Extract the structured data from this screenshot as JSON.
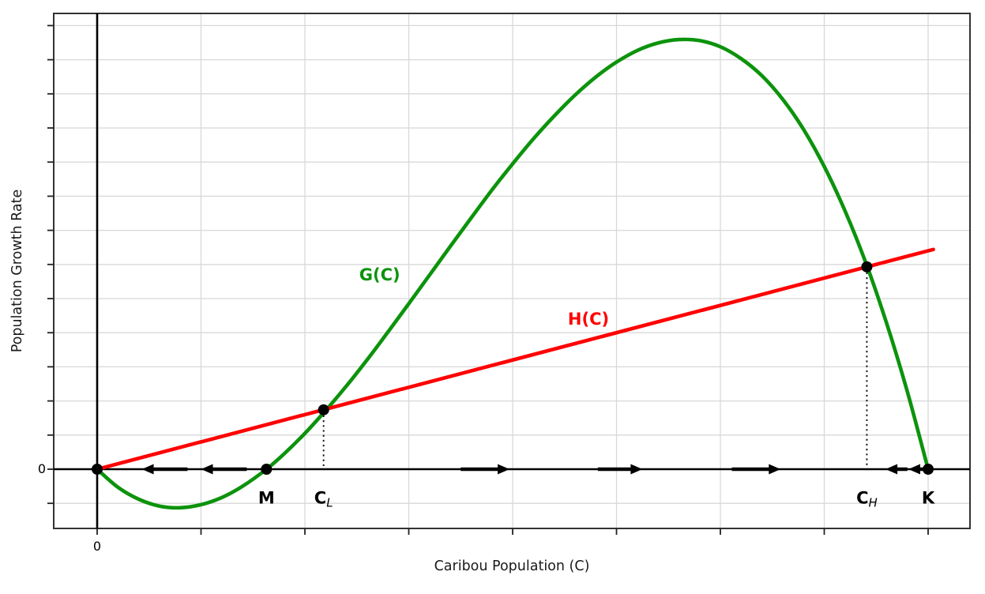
{
  "figure": {
    "xlabel": "Caribou Population (C)",
    "ylabel": "Population Growth Rate",
    "x_zero_label": "0",
    "y_zero_label": "0"
  },
  "chart_data": {
    "type": "line",
    "title": "",
    "xlabel": "Caribou Population (C)",
    "ylabel": "Population Growth Rate",
    "x_range_units": [
      -0.42,
      8.4
    ],
    "y_range_units": [
      -1.74,
      13.36
    ],
    "grid": true,
    "x_gridline_units": [
      0,
      1,
      2,
      3,
      4,
      5,
      6,
      7,
      8
    ],
    "y_gridline_units": [
      -1,
      0,
      1,
      2,
      3,
      4,
      5,
      6,
      7,
      8,
      9,
      10,
      11,
      12,
      13
    ],
    "colors": {
      "growth_curve": "#0c930c",
      "harvest_line": "#ff0000",
      "axis": "#000000",
      "grid": "#d8d8d8",
      "frame": "#333333",
      "points": "#000000"
    },
    "series": [
      {
        "name": "G(C)",
        "color": "#0c930c",
        "points": [
          [
            0,
            0
          ],
          [
            0.2,
            -0.53
          ],
          [
            0.4,
            -0.88
          ],
          [
            0.6,
            -1.08
          ],
          [
            0.8,
            -1.13
          ],
          [
            1,
            -1.04
          ],
          [
            1.2,
            -0.83
          ],
          [
            1.4,
            -0.5
          ],
          [
            1.63,
            0
          ],
          [
            1.8,
            0.45
          ],
          [
            2,
            1.05
          ],
          [
            2.2,
            1.72
          ],
          [
            2.4,
            2.44
          ],
          [
            2.6,
            3.21
          ],
          [
            2.8,
            4.02
          ],
          [
            3,
            4.85
          ],
          [
            3.2,
            5.69
          ],
          [
            3.4,
            6.53
          ],
          [
            3.6,
            7.36
          ],
          [
            3.8,
            8.18
          ],
          [
            4,
            8.95
          ],
          [
            4.2,
            9.68
          ],
          [
            4.4,
            10.35
          ],
          [
            4.6,
            10.96
          ],
          [
            4.8,
            11.49
          ],
          [
            5,
            11.93
          ],
          [
            5.2,
            12.27
          ],
          [
            5.4,
            12.49
          ],
          [
            5.6,
            12.59
          ],
          [
            5.8,
            12.56
          ],
          [
            6,
            12.38
          ],
          [
            6.2,
            12.03
          ],
          [
            6.4,
            11.53
          ],
          [
            6.6,
            10.84
          ],
          [
            6.8,
            9.96
          ],
          [
            7,
            8.87
          ],
          [
            7.2,
            7.57
          ],
          [
            7.4,
            6.05
          ],
          [
            7.6,
            4.28
          ],
          [
            7.8,
            2.27
          ],
          [
            8,
            0
          ]
        ]
      },
      {
        "name": "H(C)",
        "color": "#ff0000",
        "points": [
          [
            0,
            0
          ],
          [
            8.05,
            6.44
          ]
        ]
      }
    ],
    "curve_labels": [
      {
        "text": "G(C)",
        "x": 2.72,
        "y": 5.69,
        "color": "#0c930c"
      },
      {
        "text": "H(C)",
        "x": 4.73,
        "y": 4.4,
        "color": "#ff0000"
      }
    ],
    "equilibrium_points": [
      {
        "x": 0,
        "y": 0,
        "label": "",
        "sub": "",
        "dropline": false
      },
      {
        "x": 1.63,
        "y": 0,
        "label": "M",
        "sub": "",
        "dropline": false
      },
      {
        "x": 2.18,
        "y": 1.74,
        "label": "C",
        "sub": "L",
        "dropline": true
      },
      {
        "x": 7.41,
        "y": 5.93,
        "label": "C",
        "sub": "H",
        "dropline": true
      },
      {
        "x": 8.0,
        "y": 0,
        "label": "K",
        "sub": "",
        "dropline": false
      }
    ],
    "point_label_y_units": -0.85,
    "flow_arrows": [
      {
        "x_tail": 0.87,
        "x_tip": 0.43,
        "direction": "left"
      },
      {
        "x_tail": 1.44,
        "x_tip": 1.0,
        "direction": "left"
      },
      {
        "x_tail": 3.5,
        "x_tip": 3.97,
        "direction": "right"
      },
      {
        "x_tail": 4.82,
        "x_tip": 5.25,
        "direction": "right"
      },
      {
        "x_tail": 6.11,
        "x_tip": 6.58,
        "direction": "right"
      },
      {
        "x_tail": 7.8,
        "x_tip": 7.59,
        "direction": "left"
      },
      {
        "x_tail": 8.01,
        "x_tip": 7.81,
        "direction": "left"
      }
    ]
  }
}
